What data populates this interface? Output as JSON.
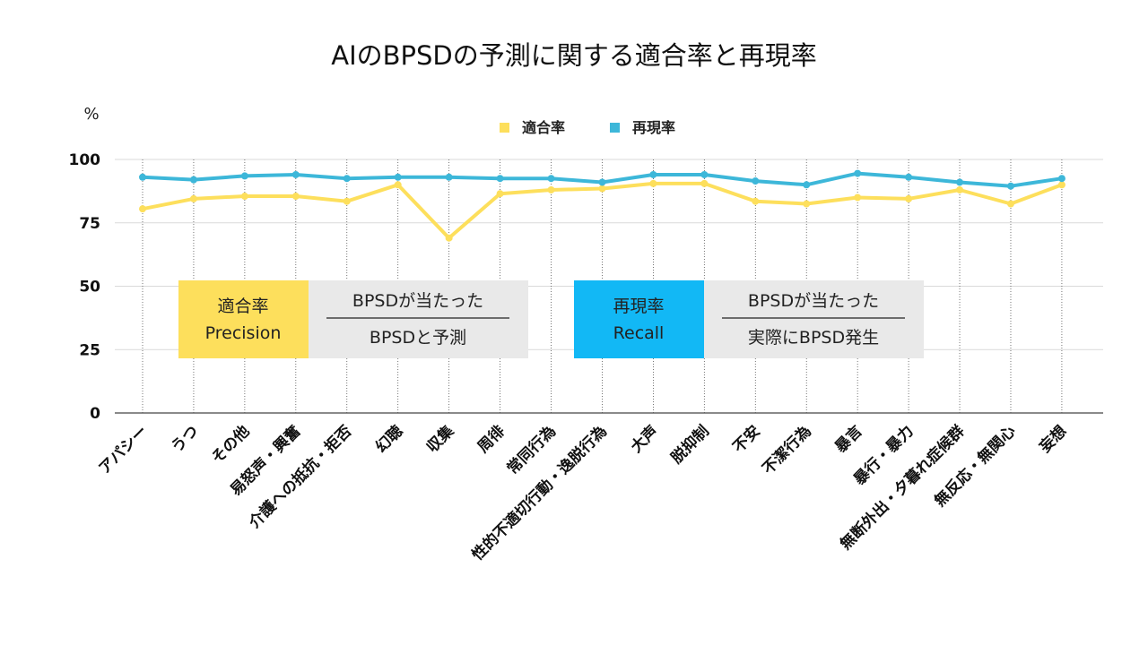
{
  "chart_data": {
    "type": "line",
    "title": "AIのBPSDの予測に関する適合率と再現率",
    "ylabel": "%",
    "xlabel": "",
    "ylim": [
      0,
      100
    ],
    "yticks": [
      0,
      25,
      50,
      75,
      100
    ],
    "grid": true,
    "legend_position": "top-center",
    "categories": [
      "アパシー",
      "うつ",
      "その他",
      "易怒声・興奮",
      "介護への抵抗・拒否",
      "幻聴",
      "収集",
      "周徘",
      "常同行為",
      "性的不適切行動・逸脱行為",
      "大声",
      "脱抑制",
      "不安",
      "不潔行為",
      "暴言",
      "暴行・暴力",
      "無断外出・夕暮れ症候群",
      "無反応・無関心",
      "妄想"
    ],
    "series": [
      {
        "name": "適合率",
        "color": "#FDDF5C",
        "values": [
          80.5,
          84.5,
          85.5,
          85.5,
          83.5,
          90.0,
          69.0,
          86.5,
          88.0,
          88.5,
          90.5,
          90.5,
          83.5,
          82.5,
          85.0,
          84.5,
          88.0,
          82.5,
          90.0
        ]
      },
      {
        "name": "再現率",
        "color": "#3DB7D9",
        "values": [
          93.0,
          92.0,
          93.5,
          94.0,
          92.5,
          93.0,
          93.0,
          92.5,
          92.5,
          91.0,
          94.0,
          94.0,
          91.5,
          90.0,
          94.5,
          93.0,
          91.0,
          89.5,
          92.5
        ]
      }
    ],
    "annotations": [
      {
        "label_title": "適合率",
        "label_sub": "Precision",
        "label_color": "#FDDF5C",
        "label_text_color": "#222222",
        "numerator": "BPSDが当たった",
        "denominator": "BPSDと予測",
        "formula_bg": "#E9E9E9"
      },
      {
        "label_title": "再現率",
        "label_sub": "Recall",
        "label_color": "#12B8F5",
        "label_text_color": "#1a1a1a",
        "numerator": "BPSDが当たった",
        "denominator": "実際にBPSD発生",
        "formula_bg": "#E9E9E9"
      }
    ]
  }
}
